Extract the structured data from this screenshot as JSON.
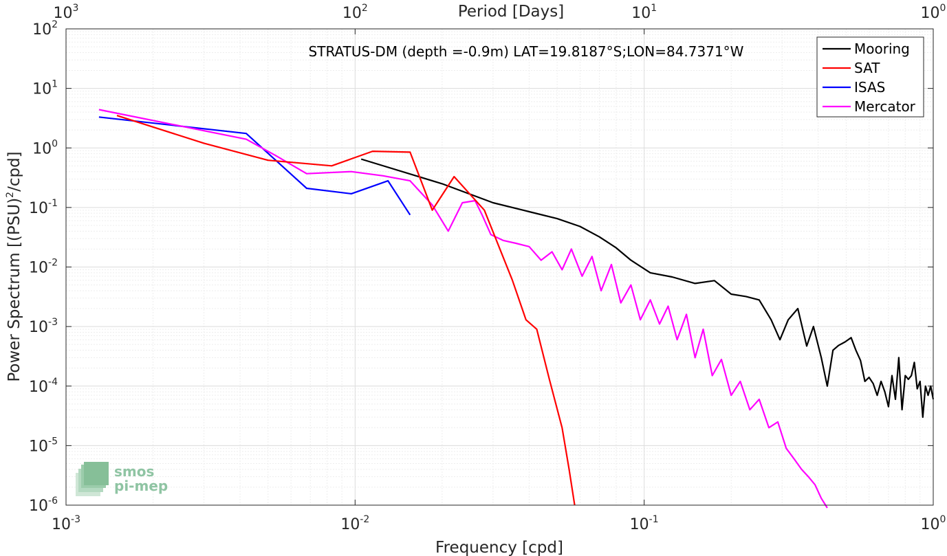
{
  "chart_data": {
    "type": "line",
    "title": "STRATUS-DM (depth =-0.9m) LAT=19.8187°S;LON=84.7371°W",
    "xlabel": "Frequency [cpd]",
    "ylabel_main": "Power Spectrum [(PSU)",
    "ylabel_sup": "2",
    "ylabel_tail": "/cpd]",
    "x2label": "Period [Days]",
    "xscale": "log",
    "yscale": "log",
    "xlim": [
      0.001,
      1
    ],
    "ylim": [
      1e-06,
      100
    ],
    "grid": true,
    "legend_position": "top-right",
    "x_ticks": [
      {
        "v": 0.001,
        "base": "10",
        "exp": "-3"
      },
      {
        "v": 0.01,
        "base": "10",
        "exp": "-2"
      },
      {
        "v": 0.1,
        "base": "10",
        "exp": "-1"
      },
      {
        "v": 1,
        "base": "10",
        "exp": "0"
      }
    ],
    "y_ticks": [
      {
        "v": 1e-06,
        "base": "10",
        "exp": "-6"
      },
      {
        "v": 1e-05,
        "base": "10",
        "exp": "-5"
      },
      {
        "v": 0.0001,
        "base": "10",
        "exp": "-4"
      },
      {
        "v": 0.001,
        "base": "10",
        "exp": "-3"
      },
      {
        "v": 0.01,
        "base": "10",
        "exp": "-2"
      },
      {
        "v": 0.1,
        "base": "10",
        "exp": "-1"
      },
      {
        "v": 1,
        "base": "10",
        "exp": "0"
      },
      {
        "v": 10,
        "base": "10",
        "exp": "1"
      },
      {
        "v": 100,
        "base": "10",
        "exp": "2"
      }
    ],
    "period_ticks": [
      {
        "v": 1000,
        "base": "10",
        "exp": "3"
      },
      {
        "v": 100,
        "base": "10",
        "exp": "2"
      },
      {
        "v": 10,
        "base": "10",
        "exp": "1"
      },
      {
        "v": 1,
        "base": "10",
        "exp": "0"
      }
    ],
    "series": [
      {
        "name": "Mooring",
        "color": "#000000",
        "x": [
          0.0105,
          0.02,
          0.03,
          0.04,
          0.05,
          0.06,
          0.07,
          0.08,
          0.09,
          0.105,
          0.125,
          0.15,
          0.175,
          0.2,
          0.225,
          0.25,
          0.275,
          0.295,
          0.315,
          0.34,
          0.365,
          0.385,
          0.41,
          0.43,
          0.45,
          0.47,
          0.495,
          0.52,
          0.54,
          0.56,
          0.58,
          0.6,
          0.62,
          0.64,
          0.66,
          0.68,
          0.7,
          0.72,
          0.74,
          0.76,
          0.78,
          0.8,
          0.82,
          0.84,
          0.86,
          0.88,
          0.9,
          0.92,
          0.94,
          0.96,
          0.98,
          1.0
        ],
        "y": [
          0.65,
          0.25,
          0.12,
          0.085,
          0.065,
          0.048,
          0.032,
          0.021,
          0.013,
          0.008,
          0.0068,
          0.0053,
          0.0059,
          0.0035,
          0.0032,
          0.0028,
          0.0013,
          0.0006,
          0.0013,
          0.002,
          0.00047,
          0.001,
          0.0003,
          0.0001,
          0.0004,
          0.00048,
          0.00055,
          0.00065,
          0.0004,
          0.00027,
          0.00012,
          0.00014,
          0.00011,
          7e-05,
          0.00012,
          8e-05,
          4.5e-05,
          0.00015,
          6e-05,
          0.0003,
          4e-05,
          0.00015,
          0.00013,
          0.00015,
          0.00025,
          9e-05,
          0.00012,
          3e-05,
          0.0001,
          7e-05,
          0.0001,
          6e-05
        ]
      },
      {
        "name": "SAT",
        "color": "#ff0000",
        "x": [
          0.0015,
          0.003,
          0.005,
          0.0083,
          0.0115,
          0.0155,
          0.0185,
          0.022,
          0.028,
          0.035,
          0.039,
          0.0425,
          0.047,
          0.052,
          0.055,
          0.0575
        ],
        "y": [
          3.5,
          1.2,
          0.62,
          0.5,
          0.88,
          0.85,
          0.09,
          0.33,
          0.09,
          0.006,
          0.0013,
          0.0009,
          0.00013,
          2e-05,
          4e-06,
          1e-06
        ]
      },
      {
        "name": "ISAS",
        "color": "#0000ff",
        "x": [
          0.0013,
          0.0042,
          0.0068,
          0.0097,
          0.013,
          0.0155
        ],
        "y": [
          3.3,
          1.75,
          0.21,
          0.17,
          0.28,
          0.075
        ]
      },
      {
        "name": "Mercator",
        "color": "#ff00ff",
        "x": [
          0.0013,
          0.0042,
          0.0053,
          0.0068,
          0.0097,
          0.0125,
          0.0155,
          0.0185,
          0.021,
          0.0235,
          0.026,
          0.0275,
          0.0295,
          0.0325,
          0.036,
          0.04,
          0.044,
          0.048,
          0.052,
          0.056,
          0.061,
          0.066,
          0.071,
          0.077,
          0.083,
          0.09,
          0.097,
          0.105,
          0.113,
          0.121,
          0.13,
          0.14,
          0.15,
          0.16,
          0.172,
          0.185,
          0.2,
          0.215,
          0.232,
          0.25,
          0.27,
          0.29,
          0.31,
          0.33,
          0.35,
          0.37,
          0.39,
          0.41,
          0.43
        ],
        "y": [
          4.4,
          1.4,
          0.75,
          0.37,
          0.4,
          0.34,
          0.28,
          0.11,
          0.04,
          0.12,
          0.13,
          0.075,
          0.035,
          0.028,
          0.025,
          0.022,
          0.013,
          0.018,
          0.009,
          0.02,
          0.007,
          0.015,
          0.004,
          0.011,
          0.0025,
          0.005,
          0.0013,
          0.0028,
          0.0011,
          0.0022,
          0.0006,
          0.0016,
          0.0003,
          0.0009,
          0.00015,
          0.00028,
          7e-05,
          0.00012,
          4e-05,
          6e-05,
          2e-05,
          2.5e-05,
          9e-06,
          6e-06,
          4e-06,
          3e-06,
          2.2e-06,
          1.3e-06,
          9e-07
        ]
      }
    ]
  },
  "logo": {
    "line1": "smos",
    "line2": "pi-mep"
  }
}
